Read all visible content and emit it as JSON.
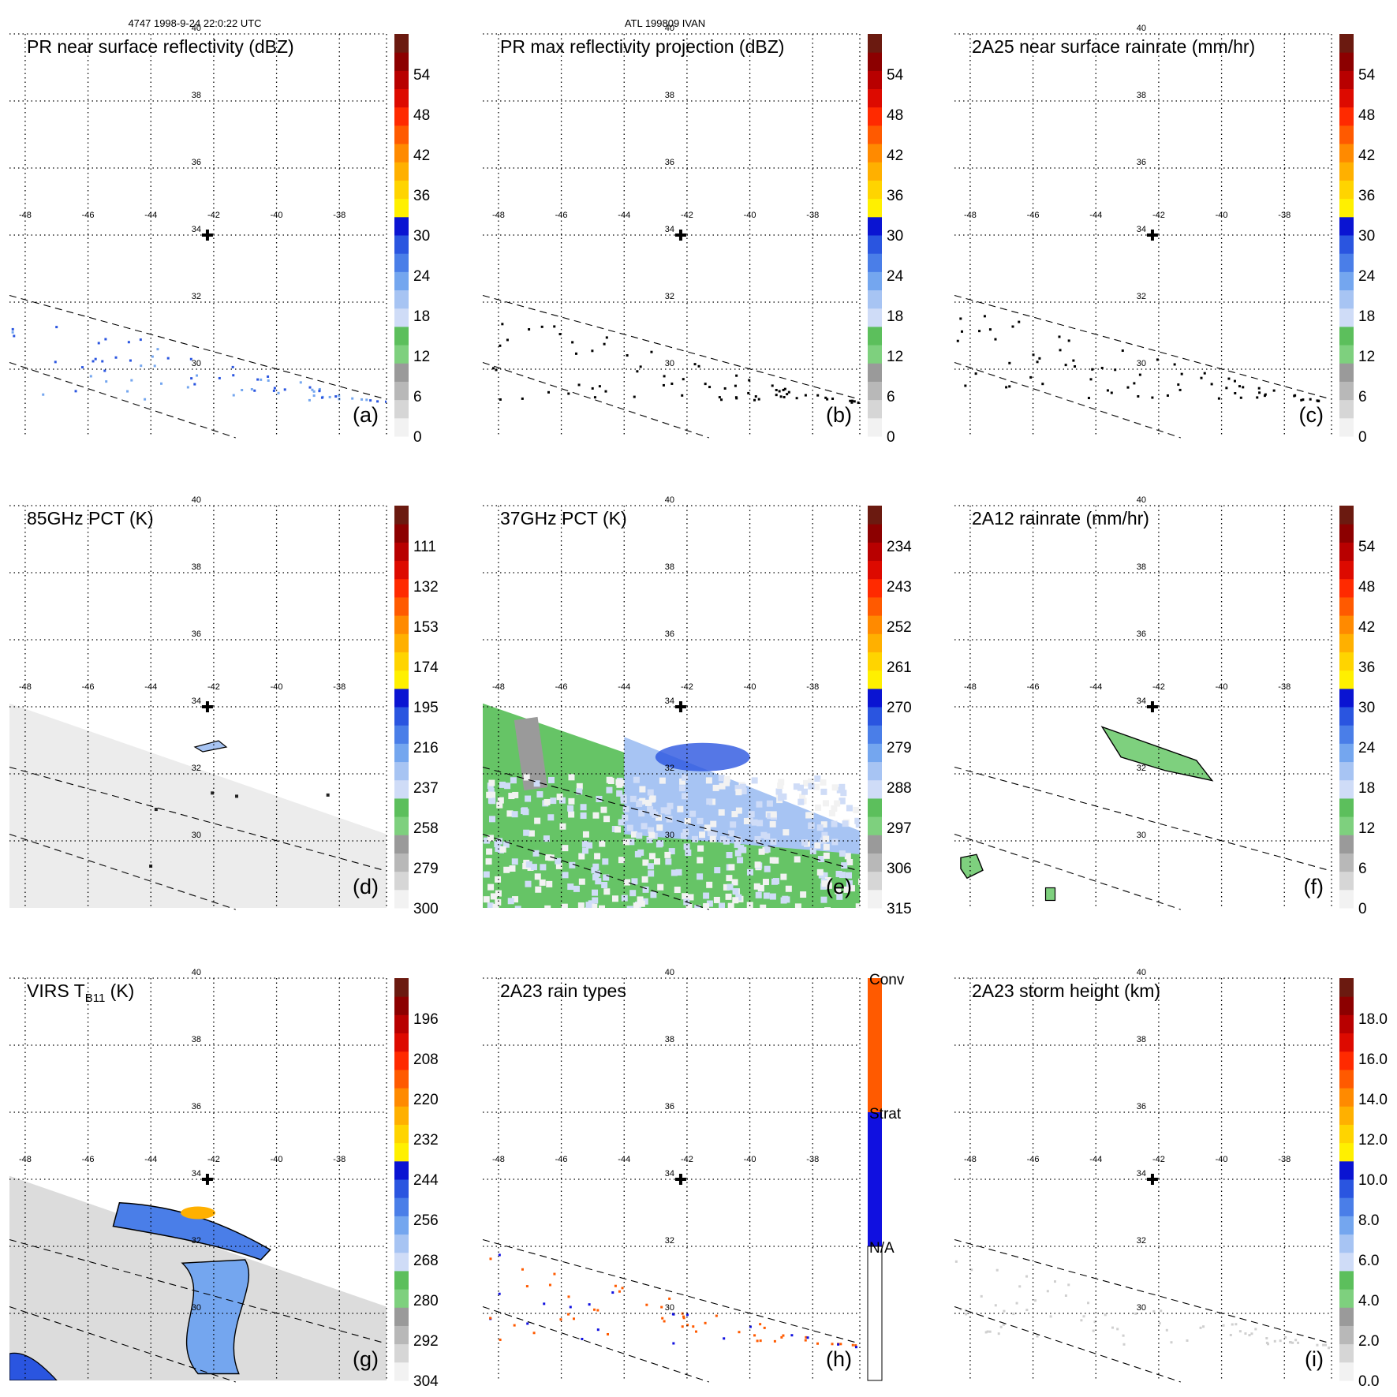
{
  "header": {
    "left": "4747 1998-9-24 22:0:22 UTC",
    "center": "ATL 199809 IVAN"
  },
  "axes": {
    "lon_ticks": [
      "-48",
      "-46",
      "-44",
      "-42",
      "-40",
      "-38"
    ],
    "lat_ticks": [
      "40",
      "38",
      "36",
      "34",
      "32",
      "30"
    ],
    "lon_range": [
      -48.5,
      -36.5
    ],
    "lat_range": [
      28,
      40
    ]
  },
  "colors": {
    "ramp": [
      "#f2f2f2",
      "#d6d6d6",
      "#b8b8b8",
      "#9a9a9a",
      "#7ed07e",
      "#5cbf5c",
      "#cfdcf7",
      "#a7c4f3",
      "#74a6ef",
      "#4a7ee8",
      "#2a55e0",
      "#0a14d2",
      "#fff000",
      "#ffd400",
      "#ffb000",
      "#ff8a00",
      "#ff5a00",
      "#ff2a00",
      "#dd0a00",
      "#b80000",
      "#8c0000",
      "#6b1a10"
    ],
    "rain_types": {
      "conv": "#ff5a00",
      "strat": "#1010e0",
      "na": "#ffffff"
    }
  },
  "panels": [
    {
      "id": "a",
      "title": "PR near surface reflectivity (dBZ)",
      "label": "(a)",
      "colorbar_labels": [
        "54",
        "48",
        "42",
        "36",
        "30",
        "24",
        "18",
        "12",
        "6",
        "0"
      ]
    },
    {
      "id": "b",
      "title": "PR max reflectivity projection (dBZ)",
      "label": "(b)",
      "colorbar_labels": [
        "54",
        "48",
        "42",
        "36",
        "30",
        "24",
        "18",
        "12",
        "6",
        "0"
      ]
    },
    {
      "id": "c",
      "title": "2A25 near surface rainrate (mm/hr)",
      "label": "(c)",
      "colorbar_labels": [
        "54",
        "48",
        "42",
        "36",
        "30",
        "24",
        "18",
        "12",
        "6",
        "0"
      ]
    },
    {
      "id": "d",
      "title": "85GHz PCT (K)",
      "label": "(d)",
      "colorbar_labels": [
        "111",
        "132",
        "153",
        "174",
        "195",
        "216",
        "237",
        "258",
        "279",
        "300"
      ]
    },
    {
      "id": "e",
      "title": "37GHz PCT (K)",
      "label": "(e)",
      "colorbar_labels": [
        "234",
        "243",
        "252",
        "261",
        "270",
        "279",
        "288",
        "297",
        "306",
        "315"
      ]
    },
    {
      "id": "f",
      "title": "2A12 rainrate (mm/hr)",
      "label": "(f)",
      "colorbar_labels": [
        "54",
        "48",
        "42",
        "36",
        "30",
        "24",
        "18",
        "12",
        "6",
        "0"
      ]
    },
    {
      "id": "g",
      "title_main": "VIRS T",
      "title_sub": "B11",
      "title_unit": " (K)",
      "label": "(g)",
      "colorbar_labels": [
        "196",
        "208",
        "220",
        "232",
        "244",
        "256",
        "268",
        "280",
        "292",
        "304"
      ]
    },
    {
      "id": "h",
      "title": "2A23 rain types",
      "label": "(h)",
      "colorbar_labels": [
        "Conv",
        "Strat",
        "N/A"
      ]
    },
    {
      "id": "i",
      "title": "2A23 storm height (km)",
      "label": "(i)",
      "colorbar_labels": [
        "18.0",
        "16.0",
        "14.0",
        "12.0",
        "10.0",
        "8.0",
        "6.0",
        "4.0",
        "2.0",
        "0.0"
      ]
    }
  ],
  "chart_data": {
    "type": "heatmap",
    "description_fields": "nine satellite map panels of Hurricane Ivan overpass",
    "storm_center": {
      "lon": -42.2,
      "lat": 34
    },
    "lon_range": [
      -48.5,
      -36.5
    ],
    "lat_range": [
      28,
      40
    ],
    "panel_colorbar_ranges": {
      "a": [
        0,
        60
      ],
      "b": [
        0,
        60
      ],
      "c": [
        0,
        60
      ],
      "d": [
        90,
        300
      ],
      "e": [
        225,
        315
      ],
      "f": [
        0,
        60
      ],
      "g": [
        184,
        304
      ],
      "i": [
        0,
        20
      ]
    }
  }
}
